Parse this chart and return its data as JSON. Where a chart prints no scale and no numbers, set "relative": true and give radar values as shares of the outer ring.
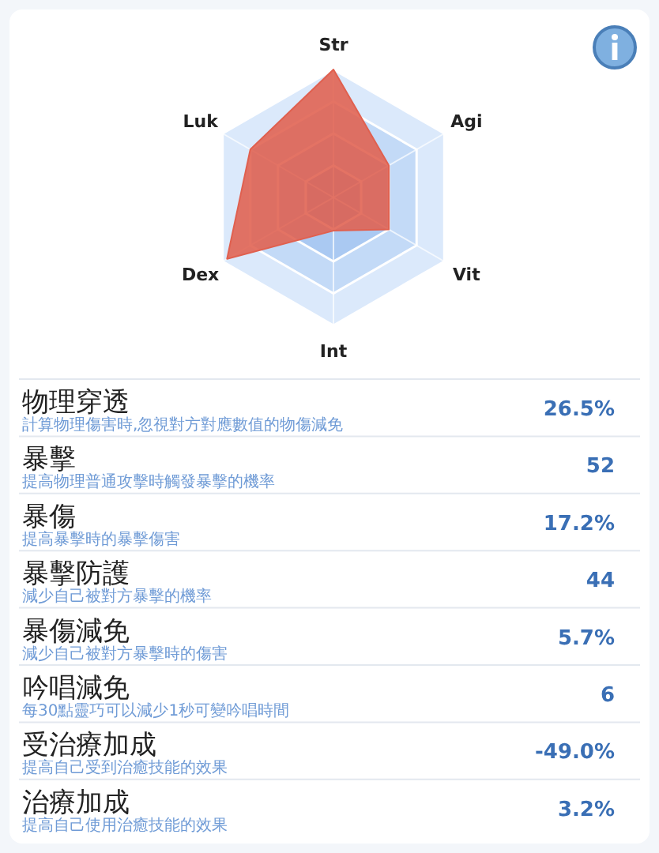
{
  "chart_data": [
    {
      "type": "radar",
      "categories": [
        "Str",
        "Agi",
        "Vit",
        "Int",
        "Dex",
        "Luk"
      ],
      "relative": true,
      "grid": true,
      "series": [
        {
          "color": "#e0604f",
          "values": [
            1,
            0.5,
            0.5,
            0.26,
            0.96,
            0.75
          ]
        }
      ]
    },
    {
      "type": "other",
      "annotations": [
        "物理穿透",
        "計算物理傷害時,忽視對方對應數值的物傷減免",
        "26.5%",
        "暴擊",
        "提高物理普通攻擊時觸發暴擊的機率",
        "52",
        "暴傷",
        "提高暴擊時的暴擊傷害",
        "17.2%",
        "暴擊防護",
        "減少自己被對方暴擊的機率",
        "44",
        "暴傷減免",
        "減少自己被對方暴擊時的傷害",
        "5.7%",
        "吟唱減免",
        "每30點靈巧可以減少1秒可變吟唱時間",
        "6",
        "受治療加成",
        "提高自己受到治癒技能的效果",
        "-49.0%",
        "治療加成",
        "提高自己使用治癒技能的效果",
        "3.2%"
      ]
    }
  ]
}
